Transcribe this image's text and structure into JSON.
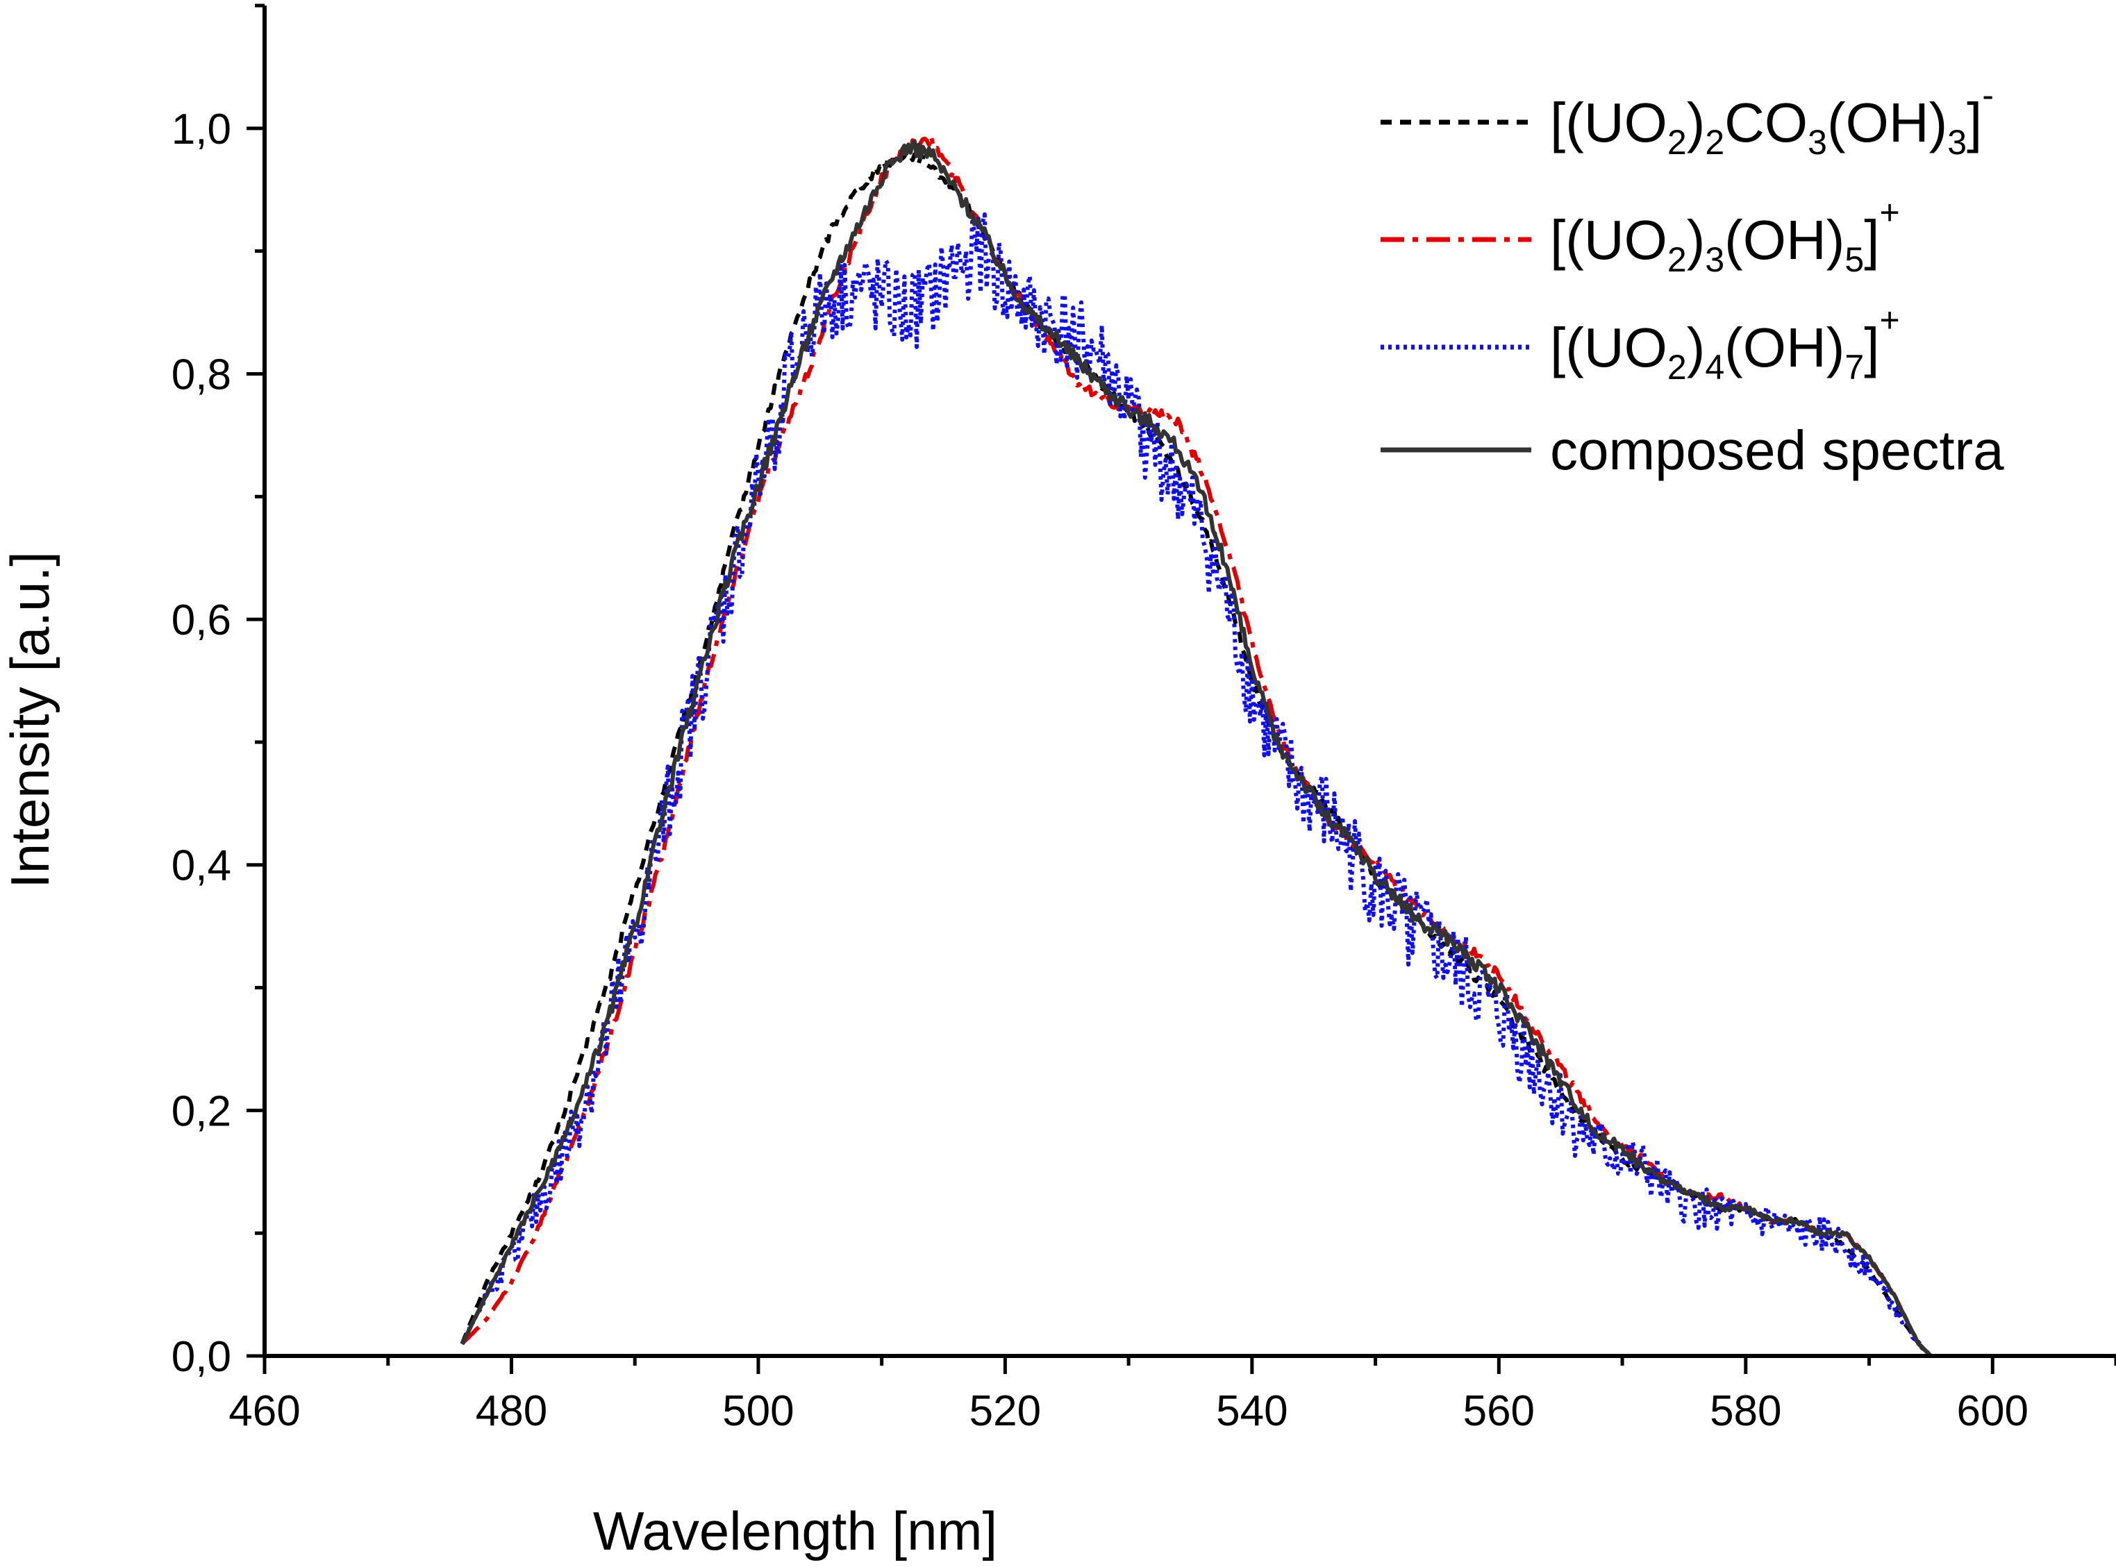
{
  "chart_data": {
    "type": "line",
    "title": "",
    "xlabel": "Wavelength [nm]",
    "ylabel": "Intensity [a.u.]",
    "xlim": [
      460,
      610
    ],
    "ylim": [
      0.0,
      1.1
    ],
    "grid": false,
    "legend_position": "top-right",
    "x_ticks": [
      460,
      480,
      500,
      520,
      540,
      560,
      580,
      600
    ],
    "x_tick_labels": [
      "460",
      "480",
      "500",
      "520",
      "540",
      "560",
      "580",
      "600"
    ],
    "y_ticks": [
      0.0,
      0.2,
      0.4,
      0.6,
      0.8,
      1.0
    ],
    "y_tick_labels": [
      "0,0",
      "0,2",
      "0,4",
      "0,6",
      "0,8",
      "1,0"
    ],
    "x_minor_step": 10,
    "y_minor_step": 0.1,
    "series": [
      {
        "name": "[(UO2)2CO3(OH)3]-",
        "legend_parts": [
          {
            "t": "[(UO"
          },
          {
            "t": "2",
            "s": "sub"
          },
          {
            "t": ")"
          },
          {
            "t": "2",
            "s": "sub"
          },
          {
            "t": "CO"
          },
          {
            "t": "3",
            "s": "sub"
          },
          {
            "t": "(OH)"
          },
          {
            "t": "3",
            "s": "sub"
          },
          {
            "t": "]"
          },
          {
            "t": "-",
            "s": "sup"
          }
        ],
        "color": "#000000",
        "style": "dash",
        "noise": 0.004,
        "x": [
          476,
          478,
          480,
          482,
          484,
          486,
          488,
          490,
          492,
          494,
          496,
          498,
          500,
          502,
          504,
          506,
          508,
          510,
          512,
          514,
          516,
          518,
          520,
          522,
          524,
          526,
          528,
          530,
          532,
          534,
          536,
          538,
          540,
          542,
          544,
          546,
          548,
          550,
          552,
          554,
          556,
          558,
          560,
          562,
          564,
          566,
          568,
          570,
          572,
          574,
          576,
          578,
          580,
          582,
          584,
          586,
          588,
          590,
          592,
          594,
          595
        ],
        "values": [
          0.01,
          0.06,
          0.1,
          0.14,
          0.19,
          0.25,
          0.31,
          0.38,
          0.45,
          0.52,
          0.59,
          0.67,
          0.74,
          0.81,
          0.87,
          0.92,
          0.95,
          0.97,
          0.98,
          0.97,
          0.95,
          0.92,
          0.88,
          0.85,
          0.83,
          0.81,
          0.79,
          0.77,
          0.75,
          0.72,
          0.68,
          0.62,
          0.55,
          0.5,
          0.47,
          0.45,
          0.42,
          0.39,
          0.37,
          0.35,
          0.33,
          0.31,
          0.29,
          0.26,
          0.23,
          0.2,
          0.18,
          0.16,
          0.15,
          0.14,
          0.13,
          0.12,
          0.12,
          0.11,
          0.11,
          0.1,
          0.09,
          0.07,
          0.04,
          0.01,
          0.0
        ]
      },
      {
        "name": "[(UO2)3(OH)5]+",
        "legend_parts": [
          {
            "t": "[(UO"
          },
          {
            "t": "2",
            "s": "sub"
          },
          {
            "t": ")"
          },
          {
            "t": "3",
            "s": "sub"
          },
          {
            "t": "(OH)"
          },
          {
            "t": "5",
            "s": "sub"
          },
          {
            "t": "]"
          },
          {
            "t": "+",
            "s": "sup"
          }
        ],
        "color": "#e00000",
        "style": "dashdot",
        "noise": 0.004,
        "x": [
          476,
          478,
          480,
          482,
          484,
          486,
          488,
          490,
          492,
          494,
          496,
          498,
          500,
          502,
          504,
          506,
          508,
          510,
          512,
          514,
          516,
          518,
          520,
          522,
          524,
          526,
          528,
          530,
          532,
          534,
          536,
          538,
          540,
          542,
          544,
          546,
          548,
          550,
          552,
          554,
          556,
          558,
          560,
          562,
          564,
          566,
          568,
          570,
          572,
          574,
          576,
          578,
          580,
          582,
          584,
          586,
          588,
          590,
          592,
          594,
          595
        ],
        "values": [
          0.01,
          0.03,
          0.06,
          0.1,
          0.15,
          0.2,
          0.26,
          0.33,
          0.4,
          0.48,
          0.56,
          0.63,
          0.7,
          0.75,
          0.8,
          0.86,
          0.91,
          0.96,
          0.985,
          0.99,
          0.96,
          0.92,
          0.88,
          0.85,
          0.82,
          0.79,
          0.78,
          0.77,
          0.77,
          0.76,
          0.72,
          0.66,
          0.58,
          0.51,
          0.47,
          0.44,
          0.42,
          0.4,
          0.38,
          0.36,
          0.34,
          0.33,
          0.31,
          0.28,
          0.25,
          0.22,
          0.19,
          0.17,
          0.16,
          0.14,
          0.13,
          0.13,
          0.12,
          0.11,
          0.11,
          0.1,
          0.1,
          0.08,
          0.05,
          0.01,
          0.0
        ]
      },
      {
        "name": "[(UO2)4(OH)7]+",
        "legend_parts": [
          {
            "t": "[(UO"
          },
          {
            "t": "2",
            "s": "sub"
          },
          {
            "t": ")"
          },
          {
            "t": "4",
            "s": "sub"
          },
          {
            "t": "(OH)"
          },
          {
            "t": "7",
            "s": "sub"
          },
          {
            "t": "]"
          },
          {
            "t": "+",
            "s": "sup"
          }
        ],
        "color": "#1010e8",
        "style": "dot",
        "noise": 0.035,
        "x": [
          476,
          478,
          480,
          482,
          484,
          486,
          488,
          490,
          492,
          494,
          496,
          498,
          500,
          502,
          504,
          506,
          508,
          510,
          512,
          514,
          516,
          518,
          520,
          522,
          524,
          526,
          528,
          530,
          532,
          534,
          536,
          538,
          540,
          542,
          544,
          546,
          548,
          550,
          552,
          554,
          556,
          558,
          560,
          562,
          564,
          566,
          568,
          570,
          572,
          574,
          576,
          578,
          580,
          582,
          584,
          586,
          588,
          590,
          592,
          594,
          595
        ],
        "values": [
          0.01,
          0.05,
          0.08,
          0.12,
          0.16,
          0.21,
          0.27,
          0.34,
          0.42,
          0.5,
          0.57,
          0.64,
          0.71,
          0.78,
          0.84,
          0.86,
          0.87,
          0.86,
          0.85,
          0.86,
          0.89,
          0.9,
          0.87,
          0.85,
          0.84,
          0.83,
          0.81,
          0.77,
          0.74,
          0.71,
          0.67,
          0.61,
          0.54,
          0.49,
          0.46,
          0.44,
          0.41,
          0.38,
          0.36,
          0.34,
          0.32,
          0.3,
          0.28,
          0.25,
          0.22,
          0.19,
          0.17,
          0.16,
          0.15,
          0.13,
          0.12,
          0.12,
          0.11,
          0.11,
          0.1,
          0.1,
          0.09,
          0.07,
          0.04,
          0.01,
          0.0
        ]
      },
      {
        "name": "composed spectra",
        "legend_parts": [
          {
            "t": "composed spectra"
          }
        ],
        "color": "#333333",
        "style": "solid",
        "noise": 0.006,
        "x": [
          476,
          478,
          480,
          482,
          484,
          486,
          488,
          490,
          492,
          494,
          496,
          498,
          500,
          502,
          504,
          506,
          508,
          510,
          512,
          514,
          516,
          518,
          520,
          522,
          524,
          526,
          528,
          530,
          532,
          534,
          536,
          538,
          540,
          542,
          544,
          546,
          548,
          550,
          552,
          554,
          556,
          558,
          560,
          562,
          564,
          566,
          568,
          570,
          572,
          574,
          576,
          578,
          580,
          582,
          584,
          586,
          588,
          590,
          592,
          594,
          595
        ],
        "values": [
          0.01,
          0.05,
          0.09,
          0.13,
          0.17,
          0.22,
          0.28,
          0.35,
          0.43,
          0.51,
          0.58,
          0.65,
          0.71,
          0.77,
          0.83,
          0.88,
          0.92,
          0.96,
          0.985,
          0.98,
          0.95,
          0.92,
          0.88,
          0.85,
          0.83,
          0.81,
          0.79,
          0.77,
          0.76,
          0.74,
          0.7,
          0.64,
          0.56,
          0.5,
          0.47,
          0.44,
          0.42,
          0.39,
          0.37,
          0.35,
          0.34,
          0.32,
          0.3,
          0.27,
          0.24,
          0.21,
          0.18,
          0.17,
          0.15,
          0.14,
          0.13,
          0.12,
          0.12,
          0.11,
          0.11,
          0.1,
          0.1,
          0.08,
          0.05,
          0.01,
          0.0
        ]
      }
    ]
  }
}
